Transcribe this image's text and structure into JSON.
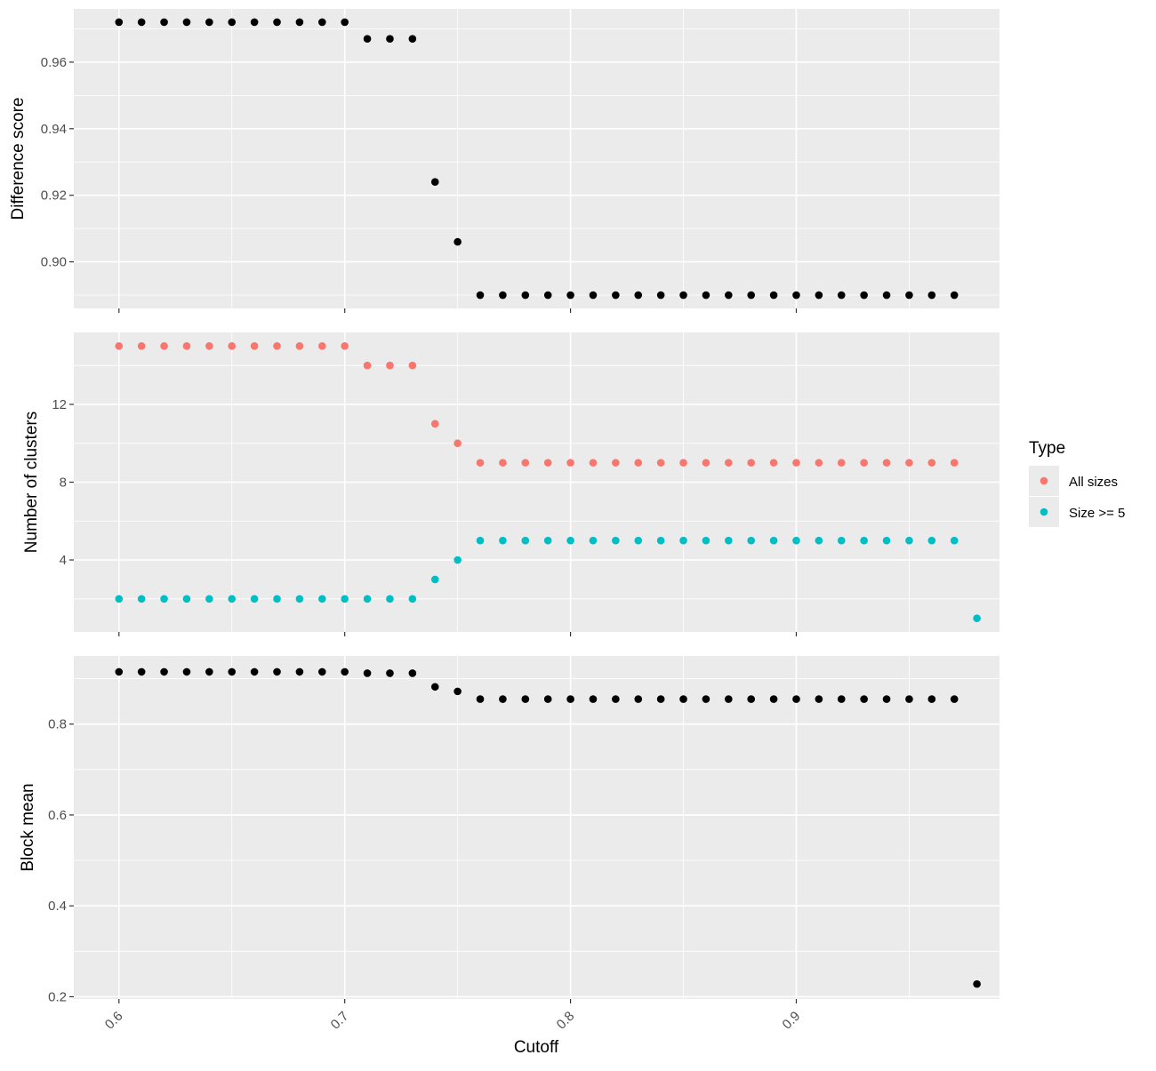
{
  "chart_data": {
    "type": "scatter",
    "xlabel": "Cutoff",
    "xlim": [
      0.58,
      0.99
    ],
    "x_ticks": [
      0.6,
      0.7,
      0.8,
      0.9
    ],
    "x_tick_labels": [
      "0.6",
      "0.7",
      "0.8",
      "0.9"
    ],
    "grid": true,
    "legend": {
      "title": "Type",
      "placement": "right",
      "entries": [
        {
          "label": "All sizes",
          "color": "#F8766D"
        },
        {
          "label": "Size >= 5",
          "color": "#00BFC4"
        }
      ]
    },
    "panels": [
      {
        "ylabel": "Difference score",
        "ylim": [
          0.886,
          0.976
        ],
        "y_ticks": [
          0.9,
          0.92,
          0.94,
          0.96
        ],
        "y_tick_labels": [
          "0.90",
          "0.92",
          "0.94",
          "0.96"
        ],
        "series": [
          {
            "color": "#000000",
            "points": [
              [
                0.6,
                0.972
              ],
              [
                0.61,
                0.972
              ],
              [
                0.62,
                0.972
              ],
              [
                0.63,
                0.972
              ],
              [
                0.64,
                0.972
              ],
              [
                0.65,
                0.972
              ],
              [
                0.66,
                0.972
              ],
              [
                0.67,
                0.972
              ],
              [
                0.68,
                0.972
              ],
              [
                0.69,
                0.972
              ],
              [
                0.7,
                0.972
              ],
              [
                0.71,
                0.967
              ],
              [
                0.72,
                0.967
              ],
              [
                0.73,
                0.967
              ],
              [
                0.74,
                0.924
              ],
              [
                0.75,
                0.906
              ],
              [
                0.76,
                0.89
              ],
              [
                0.77,
                0.89
              ],
              [
                0.78,
                0.89
              ],
              [
                0.79,
                0.89
              ],
              [
                0.8,
                0.89
              ],
              [
                0.81,
                0.89
              ],
              [
                0.82,
                0.89
              ],
              [
                0.83,
                0.89
              ],
              [
                0.84,
                0.89
              ],
              [
                0.85,
                0.89
              ],
              [
                0.86,
                0.89
              ],
              [
                0.87,
                0.89
              ],
              [
                0.88,
                0.89
              ],
              [
                0.89,
                0.89
              ],
              [
                0.9,
                0.89
              ],
              [
                0.91,
                0.89
              ],
              [
                0.92,
                0.89
              ],
              [
                0.93,
                0.89
              ],
              [
                0.94,
                0.89
              ],
              [
                0.95,
                0.89
              ],
              [
                0.96,
                0.89
              ],
              [
                0.97,
                0.89
              ]
            ]
          }
        ]
      },
      {
        "ylabel": "Number of clusters",
        "ylim": [
          0.3,
          15.7
        ],
        "y_ticks": [
          4,
          8,
          12
        ],
        "y_tick_labels": [
          "4",
          "8",
          "12"
        ],
        "series": [
          {
            "name": "All sizes",
            "color": "#F8766D",
            "points": [
              [
                0.6,
                15
              ],
              [
                0.61,
                15
              ],
              [
                0.62,
                15
              ],
              [
                0.63,
                15
              ],
              [
                0.64,
                15
              ],
              [
                0.65,
                15
              ],
              [
                0.66,
                15
              ],
              [
                0.67,
                15
              ],
              [
                0.68,
                15
              ],
              [
                0.69,
                15
              ],
              [
                0.7,
                15
              ],
              [
                0.71,
                14
              ],
              [
                0.72,
                14
              ],
              [
                0.73,
                14
              ],
              [
                0.74,
                11
              ],
              [
                0.75,
                10
              ],
              [
                0.76,
                9
              ],
              [
                0.77,
                9
              ],
              [
                0.78,
                9
              ],
              [
                0.79,
                9
              ],
              [
                0.8,
                9
              ],
              [
                0.81,
                9
              ],
              [
                0.82,
                9
              ],
              [
                0.83,
                9
              ],
              [
                0.84,
                9
              ],
              [
                0.85,
                9
              ],
              [
                0.86,
                9
              ],
              [
                0.87,
                9
              ],
              [
                0.88,
                9
              ],
              [
                0.89,
                9
              ],
              [
                0.9,
                9
              ],
              [
                0.91,
                9
              ],
              [
                0.92,
                9
              ],
              [
                0.93,
                9
              ],
              [
                0.94,
                9
              ],
              [
                0.95,
                9
              ],
              [
                0.96,
                9
              ],
              [
                0.97,
                9
              ]
            ]
          },
          {
            "name": "Size >= 5",
            "color": "#00BFC4",
            "points": [
              [
                0.6,
                2
              ],
              [
                0.61,
                2
              ],
              [
                0.62,
                2
              ],
              [
                0.63,
                2
              ],
              [
                0.64,
                2
              ],
              [
                0.65,
                2
              ],
              [
                0.66,
                2
              ],
              [
                0.67,
                2
              ],
              [
                0.68,
                2
              ],
              [
                0.69,
                2
              ],
              [
                0.7,
                2
              ],
              [
                0.71,
                2
              ],
              [
                0.72,
                2
              ],
              [
                0.73,
                2
              ],
              [
                0.74,
                3
              ],
              [
                0.75,
                4
              ],
              [
                0.76,
                5
              ],
              [
                0.77,
                5
              ],
              [
                0.78,
                5
              ],
              [
                0.79,
                5
              ],
              [
                0.8,
                5
              ],
              [
                0.81,
                5
              ],
              [
                0.82,
                5
              ],
              [
                0.83,
                5
              ],
              [
                0.84,
                5
              ],
              [
                0.85,
                5
              ],
              [
                0.86,
                5
              ],
              [
                0.87,
                5
              ],
              [
                0.88,
                5
              ],
              [
                0.89,
                5
              ],
              [
                0.9,
                5
              ],
              [
                0.91,
                5
              ],
              [
                0.92,
                5
              ],
              [
                0.93,
                5
              ],
              [
                0.94,
                5
              ],
              [
                0.95,
                5
              ],
              [
                0.96,
                5
              ],
              [
                0.97,
                5
              ],
              [
                0.98,
                1
              ]
            ]
          }
        ]
      },
      {
        "ylabel": "Block mean",
        "ylim": [
          0.195,
          0.95
        ],
        "y_ticks": [
          0.2,
          0.4,
          0.6,
          0.8
        ],
        "y_tick_labels": [
          "0.2",
          "0.4",
          "0.6",
          "0.8"
        ],
        "series": [
          {
            "color": "#000000",
            "points": [
              [
                0.6,
                0.915
              ],
              [
                0.61,
                0.915
              ],
              [
                0.62,
                0.915
              ],
              [
                0.63,
                0.915
              ],
              [
                0.64,
                0.915
              ],
              [
                0.65,
                0.915
              ],
              [
                0.66,
                0.915
              ],
              [
                0.67,
                0.915
              ],
              [
                0.68,
                0.915
              ],
              [
                0.69,
                0.915
              ],
              [
                0.7,
                0.915
              ],
              [
                0.71,
                0.912
              ],
              [
                0.72,
                0.912
              ],
              [
                0.73,
                0.912
              ],
              [
                0.74,
                0.882
              ],
              [
                0.75,
                0.872
              ],
              [
                0.76,
                0.855
              ],
              [
                0.77,
                0.855
              ],
              [
                0.78,
                0.855
              ],
              [
                0.79,
                0.855
              ],
              [
                0.8,
                0.855
              ],
              [
                0.81,
                0.855
              ],
              [
                0.82,
                0.855
              ],
              [
                0.83,
                0.855
              ],
              [
                0.84,
                0.855
              ],
              [
                0.85,
                0.855
              ],
              [
                0.86,
                0.855
              ],
              [
                0.87,
                0.855
              ],
              [
                0.88,
                0.855
              ],
              [
                0.89,
                0.855
              ],
              [
                0.9,
                0.855
              ],
              [
                0.91,
                0.855
              ],
              [
                0.92,
                0.855
              ],
              [
                0.93,
                0.855
              ],
              [
                0.94,
                0.855
              ],
              [
                0.95,
                0.855
              ],
              [
                0.96,
                0.855
              ],
              [
                0.97,
                0.855
              ],
              [
                0.98,
                0.228
              ]
            ]
          }
        ]
      }
    ]
  }
}
